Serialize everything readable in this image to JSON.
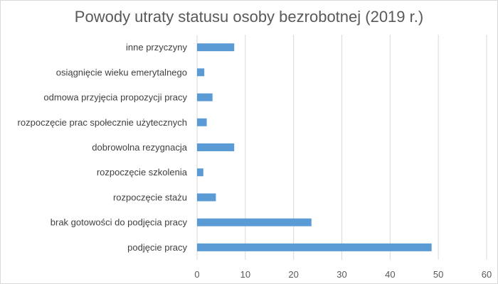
{
  "chart_data": {
    "type": "bar",
    "orientation": "horizontal",
    "title": "Powody utraty statusu osoby bezrobotnej (2019 r.)",
    "categories": [
      "inne przyczyny",
      "osiągnięcie wieku emerytalnego",
      "odmowa przyjęcia propozycji pracy",
      "rozpoczęcie prac społecznie użytecznych",
      "dobrowolna rezygnacja",
      "rozpoczęcie szkolenia",
      "rozpoczęcie stażu",
      "brak gotowości do podjęcia pracy",
      "podjęcie pracy"
    ],
    "values": [
      7.7,
      1.5,
      3.2,
      2.0,
      7.7,
      1.3,
      3.9,
      23.7,
      48.6
    ],
    "xlim": [
      0,
      60
    ],
    "xticks": [
      0,
      10,
      20,
      30,
      40,
      50,
      60
    ],
    "grid": true,
    "bar_color": "#5b9bd5"
  }
}
